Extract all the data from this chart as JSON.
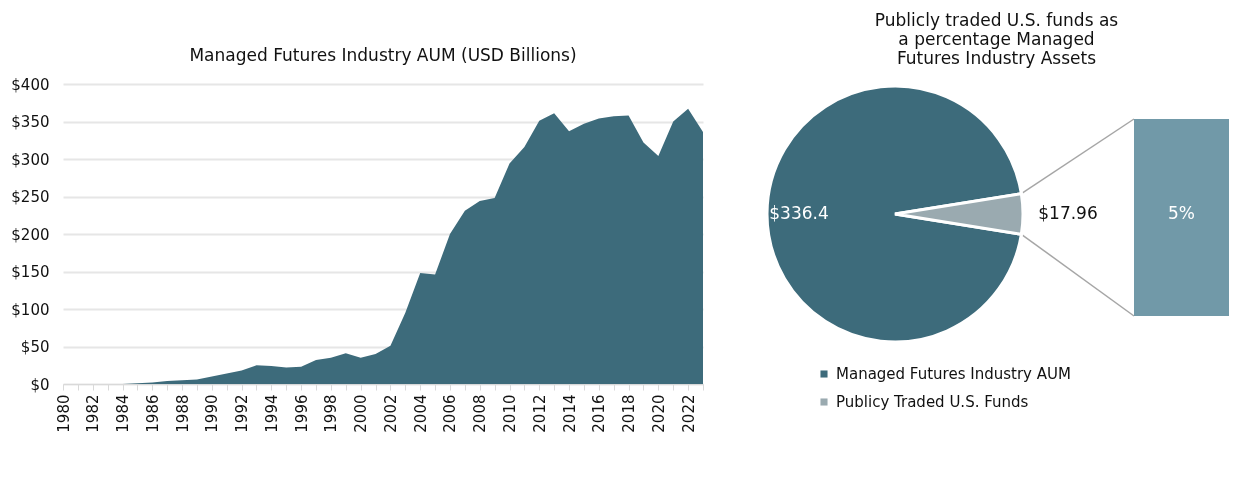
{
  "chart_data": [
    {
      "type": "area",
      "title": "Managed Futures Industry AUM (USD Billions)",
      "x": [
        1980,
        1981,
        1982,
        1983,
        1984,
        1985,
        1986,
        1987,
        1988,
        1989,
        1990,
        1991,
        1992,
        1993,
        1994,
        1995,
        1996,
        1997,
        1998,
        1999,
        2000,
        2001,
        2002,
        2003,
        2004,
        2005,
        2006,
        2007,
        2008,
        2009,
        2010,
        2011,
        2012,
        2013,
        2014,
        2015,
        2016,
        2017,
        2018,
        2019,
        2020,
        2021,
        2022,
        2023
      ],
      "series": [
        {
          "color": "#3d6b7b",
          "values": [
            0,
            0,
            0,
            0,
            0,
            1,
            2,
            4,
            5,
            6,
            10,
            14,
            18,
            25,
            24,
            22,
            23,
            32,
            35,
            41,
            35,
            40,
            51,
            95,
            148,
            146,
            200,
            231,
            244,
            248,
            294,
            316,
            351,
            361,
            337,
            347,
            354,
            357,
            358,
            322,
            304,
            350,
            367,
            336
          ]
        }
      ],
      "xlim": [
        1980,
        2023
      ],
      "xticks": [
        1980,
        {
          "value": 1981,
          "label": null
        },
        1982,
        {
          "value": 1983,
          "label": null
        },
        1984,
        {
          "value": 1985,
          "label": null
        },
        1986,
        {
          "value": 1987,
          "label": null
        },
        1988,
        {
          "value": 1989,
          "label": null
        },
        1990,
        {
          "value": 1991,
          "label": null
        },
        1992,
        {
          "value": 1993,
          "label": null
        },
        1994,
        {
          "value": 1995,
          "label": null
        },
        1996,
        {
          "value": 1997,
          "label": null
        },
        1998,
        {
          "value": 1999,
          "label": null
        },
        2000,
        {
          "value": 2001,
          "label": null
        },
        2002,
        {
          "value": 2003,
          "label": null
        },
        2004,
        {
          "value": 2005,
          "label": null
        },
        2006,
        {
          "value": 2007,
          "label": null
        },
        2008,
        {
          "value": 2009,
          "label": null
        },
        2010,
        {
          "value": 2011,
          "label": null
        },
        2012,
        {
          "value": 2013,
          "label": null
        },
        2014,
        {
          "value": 2015,
          "label": null
        },
        2016,
        {
          "value": 2017,
          "label": null
        },
        2018,
        {
          "value": 2019,
          "label": null
        },
        2020,
        {
          "value": 2021,
          "label": null
        },
        2022,
        {
          "value": 2023,
          "label": null
        }
      ],
      "ylim": [
        0,
        400
      ],
      "yticks": [
        {
          "value": 0,
          "label": "$0"
        },
        {
          "value": 50,
          "label": "$50"
        },
        {
          "value": 100,
          "label": "$100"
        },
        {
          "value": 150,
          "label": "$150"
        },
        {
          "value": 200,
          "label": "$200"
        },
        {
          "value": 250,
          "label": "$250"
        },
        {
          "value": 300,
          "label": "$300"
        },
        {
          "value": 350,
          "label": "$350"
        },
        {
          "value": 400,
          "label": "$400"
        }
      ],
      "grid": "y"
    },
    {
      "type": "pie",
      "title": "Publicly traded U.S. funds as\na percentage Managed\nFutures Industry Assets",
      "categories": [
        "Managed Futures Industry AUM",
        "Publicy Traded U.S. Funds"
      ],
      "values": [
        336.4,
        17.96
      ],
      "colors": [
        "#3d6b7b",
        "#9aaab0"
      ],
      "value_labels": [
        "$336.4",
        "$17.96"
      ],
      "annotations": [
        "5%"
      ],
      "legend": "bottom"
    }
  ]
}
